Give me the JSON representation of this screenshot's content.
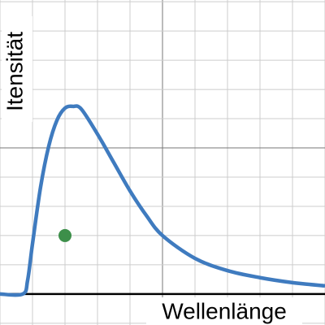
{
  "chart_data": {
    "type": "line",
    "x_label": "Wellenlänge",
    "y_label": "Itensität",
    "series": [
      {
        "color": "#3f7bbf",
        "x": [
          0,
          0.7,
          0.85,
          1.0,
          1.25,
          1.5,
          1.75,
          2.0,
          2.25,
          2.5,
          3.0,
          3.5,
          4.0,
          4.5,
          5.0,
          6.0,
          7.0,
          8.0,
          9.0,
          10.0
        ],
        "y": [
          0,
          0,
          0.47,
          1.72,
          3.67,
          5.06,
          5.94,
          6.36,
          6.42,
          6.33,
          5.47,
          4.5,
          3.53,
          2.69,
          2.0,
          1.22,
          0.8,
          0.56,
          0.39,
          0.28
        ]
      }
    ],
    "points": [
      {
        "color": "#3d8f4a",
        "x": 2,
        "y": 2
      }
    ],
    "xlim": [
      0,
      10
    ],
    "ylim": [
      -1.06,
      10.06
    ],
    "xticks": [
      0,
      1,
      2,
      3,
      4,
      5,
      6,
      7,
      8,
      9,
      10
    ],
    "yticks": [
      -1,
      0,
      1,
      2,
      3,
      4,
      5,
      6,
      7,
      8,
      9,
      10
    ],
    "major_grid": {
      "x": [
        5
      ],
      "y": [
        5
      ]
    },
    "grid": true
  }
}
